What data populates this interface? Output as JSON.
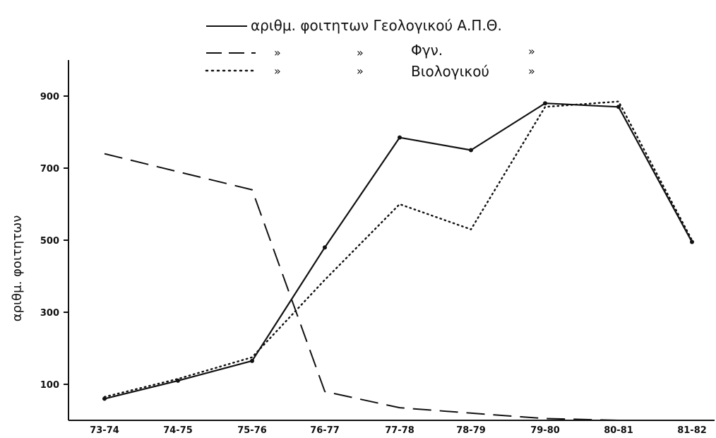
{
  "chart_data": {
    "type": "line",
    "title": "",
    "xlabel": "",
    "ylabel": "αριθμ. φοιτητων",
    "categories": [
      "73-74",
      "74-75",
      "75-76",
      "76-77",
      "77-78",
      "78-79",
      "79-80",
      "80-81",
      "81-82"
    ],
    "yticks": [
      "100",
      "300",
      "500",
      "700",
      "900"
    ],
    "ytick_values": [
      100,
      300,
      500,
      700,
      900
    ],
    "ylim": [
      0,
      1000
    ],
    "grid": false,
    "legend_position": "top-center",
    "series": [
      {
        "name": "αριθμ. φοιτητων Γεολογικού Α.Π.Θ.",
        "style": "solid",
        "markers": true,
        "values": [
          60,
          110,
          165,
          480,
          785,
          750,
          880,
          870,
          495
        ]
      },
      {
        "name": "Φγν.",
        "style": "dashed",
        "markers": false,
        "values": [
          740,
          690,
          640,
          80,
          35,
          20,
          5,
          0,
          null
        ]
      },
      {
        "name": "Βιολογικού",
        "style": "dotted",
        "markers": false,
        "values": [
          65,
          115,
          175,
          390,
          600,
          530,
          870,
          885,
          500
        ]
      }
    ],
    "legend": {
      "entries": [
        {
          "prefix": "",
          "label": "αριθμ. φοιτητων Γεολογικού Α.Π.Θ.",
          "suffix": ""
        },
        {
          "prefix": "»",
          "mid": "»",
          "label": "Φγν.",
          "suffix": "»"
        },
        {
          "prefix": "»",
          "mid": "»",
          "label": "Βιολογικού",
          "suffix": "»"
        }
      ]
    },
    "colors": {
      "ink": "#111111",
      "background": "#ffffff"
    }
  }
}
